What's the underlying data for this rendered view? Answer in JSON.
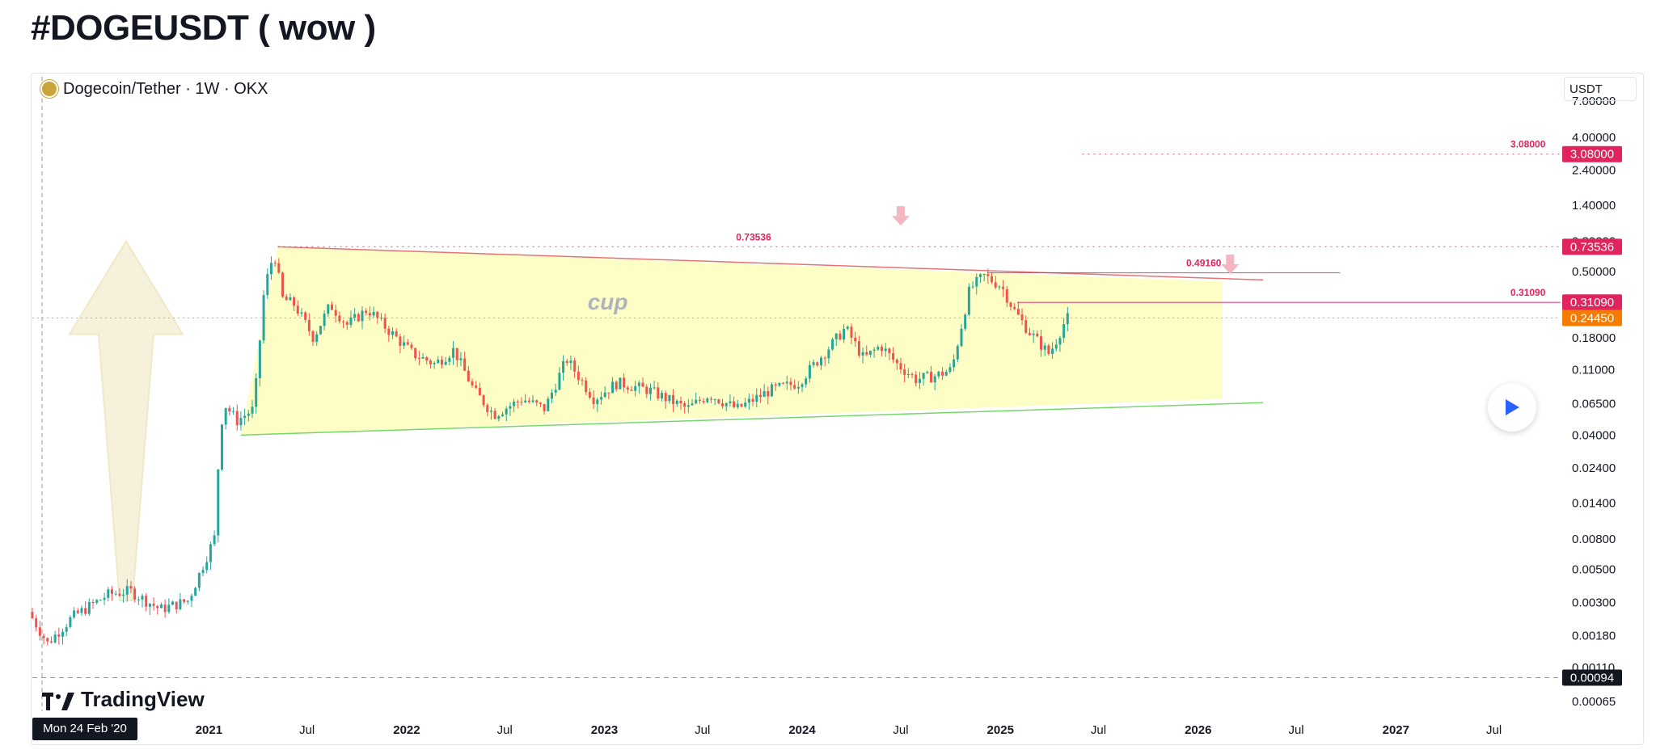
{
  "page": {
    "title": "#DOGEUSDT ( wow )"
  },
  "chart_header": {
    "symbol_text": "Dogecoin/Tether · 1W · OKX",
    "currency": "USDT"
  },
  "crosshair_date": "Mon 24 Feb '20",
  "branding": {
    "logo_text": "TradingView"
  },
  "colors": {
    "candle_up": "#26a69a",
    "candle_down": "#ef5350",
    "pattern_fill": "#fbfba0",
    "resistance_line": "#e57373",
    "support_line": "#76d76a",
    "level_marker": "#e0245e",
    "current_price": "#f57c00",
    "arrow_fill": "#f5f0d6"
  },
  "chart_data": {
    "type": "candlestick",
    "scale": "log",
    "symbol": "DOGE/USDT",
    "interval": "1W",
    "exchange": "OKX",
    "ylim": [
      0.00065,
      7.0
    ],
    "y_tick_labels": [
      "7.00000",
      "4.00000",
      "2.40000",
      "1.40000",
      "0.80000",
      "0.50000",
      "0.31090",
      "0.18000",
      "0.11000",
      "0.06500",
      "0.04000",
      "0.02400",
      "0.01400",
      "0.00800",
      "0.00500",
      "0.00300",
      "0.00180",
      "0.00110",
      "0.00065"
    ],
    "y_tick_values": [
      7.0,
      4.0,
      2.4,
      1.4,
      0.8,
      0.5,
      0.3109,
      0.18,
      0.11,
      0.065,
      0.04,
      0.024,
      0.014,
      0.008,
      0.005,
      0.003,
      0.0018,
      0.0011,
      0.00065
    ],
    "x_tick_labels": [
      "2021",
      "Jul",
      "2022",
      "Jul",
      "2023",
      "Jul",
      "2024",
      "Jul",
      "2025",
      "Jul",
      "2026",
      "Jul",
      "2027",
      "Jul"
    ],
    "x_tick_dates": [
      "2021-01-01",
      "2021-07-01",
      "2022-01-01",
      "2022-07-01",
      "2023-01-01",
      "2023-07-01",
      "2024-01-01",
      "2024-07-01",
      "2025-01-01",
      "2025-07-01",
      "2026-01-01",
      "2026-07-01",
      "2027-01-01",
      "2027-07-01"
    ],
    "x_range": [
      "2020-02-10",
      "2027-11-01"
    ],
    "x_bold_ticks": [
      "2021",
      "2022",
      "2023",
      "2024",
      "2025",
      "2026",
      "2027"
    ],
    "price_path": [
      [
        "2020-02-10",
        0.0026
      ],
      [
        "2020-03-16",
        0.0016
      ],
      [
        "2020-05-01",
        0.0024
      ],
      [
        "2020-07-06",
        0.0034
      ],
      [
        "2020-08-15",
        0.0036
      ],
      [
        "2020-10-10",
        0.0027
      ],
      [
        "2020-12-01",
        0.0031
      ],
      [
        "2021-01-20",
        0.0085
      ],
      [
        "2021-01-28",
        0.045
      ],
      [
        "2021-02-08",
        0.063
      ],
      [
        "2021-03-01",
        0.05
      ],
      [
        "2021-04-01",
        0.06
      ],
      [
        "2021-04-20",
        0.38
      ],
      [
        "2021-05-08",
        0.68
      ],
      [
        "2021-05-24",
        0.33
      ],
      [
        "2021-06-15",
        0.3
      ],
      [
        "2021-07-20",
        0.18
      ],
      [
        "2021-08-20",
        0.3
      ],
      [
        "2021-09-20",
        0.22
      ],
      [
        "2021-10-28",
        0.28
      ],
      [
        "2021-12-01",
        0.21
      ],
      [
        "2022-01-20",
        0.14
      ],
      [
        "2022-03-01",
        0.12
      ],
      [
        "2022-04-05",
        0.15
      ],
      [
        "2022-05-12",
        0.08
      ],
      [
        "2022-06-18",
        0.055
      ],
      [
        "2022-08-10",
        0.07
      ],
      [
        "2022-09-20",
        0.06
      ],
      [
        "2022-10-30",
        0.13
      ],
      [
        "2022-12-20",
        0.07
      ],
      [
        "2023-02-01",
        0.09
      ],
      [
        "2023-04-01",
        0.08
      ],
      [
        "2023-06-10",
        0.06
      ],
      [
        "2023-07-20",
        0.075
      ],
      [
        "2023-09-10",
        0.06
      ],
      [
        "2023-11-10",
        0.08
      ],
      [
        "2024-01-01",
        0.09
      ],
      [
        "2024-03-01",
        0.16
      ],
      [
        "2024-03-28",
        0.21
      ],
      [
        "2024-05-01",
        0.13
      ],
      [
        "2024-06-01",
        0.16
      ],
      [
        "2024-07-01",
        0.12
      ],
      [
        "2024-08-05",
        0.095
      ],
      [
        "2024-09-10",
        0.1
      ],
      [
        "2024-10-10",
        0.11
      ],
      [
        "2024-11-12",
        0.38
      ],
      [
        "2024-12-08",
        0.47
      ],
      [
        "2025-01-10",
        0.4
      ],
      [
        "2025-02-01",
        0.28
      ],
      [
        "2025-03-01",
        0.2
      ],
      [
        "2025-04-08",
        0.14
      ],
      [
        "2025-04-20",
        0.17
      ],
      [
        "2025-05-10",
        0.2445
      ]
    ],
    "pattern": {
      "label": "cup",
      "top_line": [
        [
          "2021-05-08",
          0.735
        ],
        [
          "2026-05-01",
          0.44
        ]
      ],
      "bottom_line": [
        [
          "2021-03-01",
          0.04
        ],
        [
          "2026-05-01",
          0.066
        ]
      ],
      "projection_corner_top": [
        "2026-02-15",
        0.43
      ],
      "projection_corner_bottom": [
        "2026-02-15",
        0.07
      ]
    },
    "levels": [
      {
        "label": "3.08000",
        "value": 3.08,
        "from": "2025-06-01",
        "style": "dotted"
      },
      {
        "label": "0.73536",
        "value": 0.73536,
        "from": "2021-05-08",
        "style": "dotted"
      },
      {
        "label": "0.49160",
        "value": 0.4916,
        "from": "2024-12-08",
        "to": "2026-09-20",
        "style": "solid"
      },
      {
        "label": "0.31090",
        "value": 0.3109,
        "from": "2025-02-01",
        "style": "solid"
      }
    ],
    "current_price": {
      "label": "0.24450",
      "value": 0.2445
    },
    "low_marker": {
      "label": "0.00094",
      "value": 0.00094
    },
    "axis_badges": [
      "3.08000",
      "0.73536",
      "0.31090",
      "0.24450"
    ],
    "down_arrows": [
      [
        "2024-07-01",
        1.1
      ],
      [
        "2026-03-01",
        0.52
      ]
    ],
    "up_arrow": {
      "from": [
        "2020-08-01",
        0.0031
      ],
      "to": [
        "2020-08-01",
        0.8
      ]
    }
  }
}
